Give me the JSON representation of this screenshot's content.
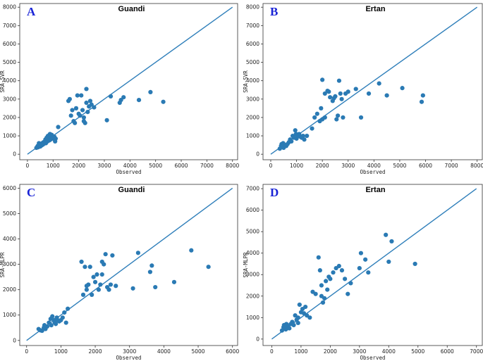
{
  "chart_data": [
    {
      "type": "scatter",
      "panel_label": "A",
      "title": "Guandi",
      "xlabel": "Observed",
      "ylabel": "SRA-SVR",
      "xlim": [
        -300,
        8200
      ],
      "ylim": [
        -300,
        8200
      ],
      "xticks": [
        0,
        1000,
        2000,
        3000,
        4000,
        5000,
        6000,
        7000,
        8000
      ],
      "yticks": [
        0,
        1000,
        2000,
        3000,
        4000,
        5000,
        6000,
        7000,
        8000
      ],
      "reference_line": {
        "from": [
          0,
          0
        ],
        "to": [
          8000,
          8000
        ]
      },
      "points": [
        [
          350,
          350
        ],
        [
          400,
          450
        ],
        [
          420,
          380
        ],
        [
          450,
          600
        ],
        [
          480,
          500
        ],
        [
          500,
          420
        ],
        [
          520,
          550
        ],
        [
          550,
          480
        ],
        [
          580,
          600
        ],
        [
          600,
          520
        ],
        [
          620,
          650
        ],
        [
          650,
          580
        ],
        [
          680,
          700
        ],
        [
          700,
          800
        ],
        [
          720,
          600
        ],
        [
          750,
          900
        ],
        [
          780,
          700
        ],
        [
          800,
          1000
        ],
        [
          820,
          850
        ],
        [
          850,
          750
        ],
        [
          880,
          1100
        ],
        [
          900,
          800
        ],
        [
          920,
          950
        ],
        [
          950,
          1050
        ],
        [
          980,
          900
        ],
        [
          1000,
          850
        ],
        [
          1050,
          950
        ],
        [
          1080,
          700
        ],
        [
          1100,
          850
        ],
        [
          1200,
          1480
        ],
        [
          1600,
          2900
        ],
        [
          1650,
          3000
        ],
        [
          1700,
          2100
        ],
        [
          1750,
          2400
        ],
        [
          1800,
          1800
        ],
        [
          1850,
          1700
        ],
        [
          1900,
          2500
        ],
        [
          1950,
          3200
        ],
        [
          2000,
          2200
        ],
        [
          2050,
          2100
        ],
        [
          2100,
          3200
        ],
        [
          2150,
          2400
        ],
        [
          2200,
          2000
        ],
        [
          2250,
          1700
        ],
        [
          2300,
          3550
        ],
        [
          2350,
          2300
        ],
        [
          2400,
          2600
        ],
        [
          2450,
          2900
        ],
        [
          2500,
          2700
        ],
        [
          2600,
          2550
        ],
        [
          3100,
          1850
        ],
        [
          3250,
          3150
        ],
        [
          3600,
          2800
        ],
        [
          3650,
          2950
        ],
        [
          3750,
          3100
        ],
        [
          4350,
          2950
        ],
        [
          4800,
          3380
        ],
        [
          5300,
          2850
        ],
        [
          2200,
          1800
        ],
        [
          2300,
          2800
        ]
      ]
    },
    {
      "type": "scatter",
      "panel_label": "B",
      "title": "Ertan",
      "xlabel": "Observed",
      "ylabel": "SRA-SVR",
      "xlim": [
        -300,
        8200
      ],
      "ylim": [
        -300,
        8200
      ],
      "xticks": [
        0,
        1000,
        2000,
        3000,
        4000,
        5000,
        6000,
        7000,
        8000
      ],
      "yticks": [
        0,
        1000,
        2000,
        3000,
        4000,
        5000,
        6000,
        7000,
        8000
      ],
      "reference_line": {
        "from": [
          0,
          0
        ],
        "to": [
          8000,
          8000
        ]
      },
      "points": [
        [
          350,
          300
        ],
        [
          400,
          450
        ],
        [
          420,
          550
        ],
        [
          450,
          400
        ],
        [
          480,
          600
        ],
        [
          500,
          350
        ],
        [
          550,
          500
        ],
        [
          600,
          450
        ],
        [
          650,
          550
        ],
        [
          700,
          650
        ],
        [
          750,
          800
        ],
        [
          800,
          700
        ],
        [
          850,
          1000
        ],
        [
          900,
          900
        ],
        [
          950,
          1300
        ],
        [
          980,
          1100
        ],
        [
          1000,
          850
        ],
        [
          1050,
          1000
        ],
        [
          1100,
          1100
        ],
        [
          1150,
          950
        ],
        [
          1200,
          900
        ],
        [
          1250,
          1000
        ],
        [
          1300,
          800
        ],
        [
          1600,
          1400
        ],
        [
          1700,
          2000
        ],
        [
          1800,
          2200
        ],
        [
          1900,
          1800
        ],
        [
          1950,
          2500
        ],
        [
          2000,
          4050
        ],
        [
          2100,
          2000
        ],
        [
          2100,
          3300
        ],
        [
          2200,
          3450
        ],
        [
          2250,
          3400
        ],
        [
          2300,
          3100
        ],
        [
          2400,
          2900
        ],
        [
          2450,
          3050
        ],
        [
          2500,
          3150
        ],
        [
          2550,
          1900
        ],
        [
          2600,
          2100
        ],
        [
          2650,
          4000
        ],
        [
          2700,
          3300
        ],
        [
          2750,
          3000
        ],
        [
          2800,
          2000
        ],
        [
          2900,
          3300
        ],
        [
          3000,
          3400
        ],
        [
          3300,
          3550
        ],
        [
          3500,
          2000
        ],
        [
          3800,
          3300
        ],
        [
          4200,
          3850
        ],
        [
          4500,
          3200
        ],
        [
          5100,
          3600
        ],
        [
          5850,
          2850
        ],
        [
          5900,
          3200
        ],
        [
          2000,
          1900
        ],
        [
          1400,
          1000
        ]
      ]
    },
    {
      "type": "scatter",
      "panel_label": "C",
      "title": "Guandi",
      "xlabel": "Observed",
      "ylabel": "SRA-MLPR",
      "xlim": [
        -200,
        6150
      ],
      "ylim": [
        -200,
        6150
      ],
      "xticks": [
        0,
        1000,
        2000,
        3000,
        4000,
        5000,
        6000
      ],
      "yticks": [
        0,
        1000,
        2000,
        3000,
        4000,
        5000,
        6000
      ],
      "reference_line": {
        "from": [
          0,
          0
        ],
        "to": [
          6000,
          6000
        ]
      },
      "points": [
        [
          350,
          450
        ],
        [
          400,
          400
        ],
        [
          450,
          380
        ],
        [
          500,
          500
        ],
        [
          520,
          600
        ],
        [
          550,
          450
        ],
        [
          600,
          550
        ],
        [
          650,
          700
        ],
        [
          700,
          850
        ],
        [
          720,
          600
        ],
        [
          750,
          950
        ],
        [
          800,
          800
        ],
        [
          820,
          700
        ],
        [
          850,
          650
        ],
        [
          880,
          900
        ],
        [
          900,
          800
        ],
        [
          950,
          750
        ],
        [
          1000,
          800
        ],
        [
          1050,
          900
        ],
        [
          1100,
          1100
        ],
        [
          1150,
          700
        ],
        [
          1200,
          1250
        ],
        [
          1600,
          3100
        ],
        [
          1650,
          1800
        ],
        [
          1700,
          2900
        ],
        [
          1750,
          2000
        ],
        [
          1800,
          2200
        ],
        [
          1850,
          2900
        ],
        [
          1900,
          1800
        ],
        [
          1950,
          2500
        ],
        [
          2000,
          2300
        ],
        [
          2050,
          2600
        ],
        [
          2100,
          2000
        ],
        [
          2150,
          2200
        ],
        [
          2200,
          3100
        ],
        [
          2250,
          3000
        ],
        [
          2300,
          3400
        ],
        [
          2350,
          2100
        ],
        [
          2400,
          2000
        ],
        [
          2450,
          2200
        ],
        [
          2500,
          3350
        ],
        [
          2600,
          2150
        ],
        [
          3100,
          2050
        ],
        [
          3250,
          3450
        ],
        [
          3600,
          2700
        ],
        [
          3650,
          2950
        ],
        [
          3750,
          2100
        ],
        [
          4300,
          2300
        ],
        [
          4800,
          3550
        ],
        [
          5300,
          2900
        ],
        [
          1750,
          2150
        ],
        [
          2200,
          2600
        ]
      ]
    },
    {
      "type": "scatter",
      "panel_label": "D",
      "title": "Ertan",
      "xlabel": "Observed",
      "ylabel": "SRA-MLPR",
      "xlim": [
        -300,
        7200
      ],
      "ylim": [
        -300,
        7200
      ],
      "xticks": [
        0,
        1000,
        2000,
        3000,
        4000,
        5000,
        6000,
        7000
      ],
      "yticks": [
        0,
        1000,
        2000,
        3000,
        4000,
        5000,
        6000,
        7000
      ],
      "reference_line": {
        "from": [
          0,
          0
        ],
        "to": [
          7000,
          7000
        ]
      },
      "points": [
        [
          350,
          400
        ],
        [
          400,
          550
        ],
        [
          420,
          650
        ],
        [
          450,
          500
        ],
        [
          480,
          450
        ],
        [
          500,
          700
        ],
        [
          550,
          600
        ],
        [
          600,
          500
        ],
        [
          650,
          700
        ],
        [
          700,
          800
        ],
        [
          750,
          650
        ],
        [
          800,
          1100
        ],
        [
          850,
          900
        ],
        [
          900,
          1000
        ],
        [
          950,
          1600
        ],
        [
          1000,
          1250
        ],
        [
          1050,
          1400
        ],
        [
          1100,
          1200
        ],
        [
          1150,
          1500
        ],
        [
          1200,
          1100
        ],
        [
          1400,
          2200
        ],
        [
          1500,
          2100
        ],
        [
          1600,
          3800
        ],
        [
          1650,
          3200
        ],
        [
          1700,
          2500
        ],
        [
          1750,
          1700
        ],
        [
          1800,
          1900
        ],
        [
          1850,
          2700
        ],
        [
          1900,
          2300
        ],
        [
          1950,
          2900
        ],
        [
          2000,
          2800
        ],
        [
          2100,
          3100
        ],
        [
          2200,
          3300
        ],
        [
          2300,
          3400
        ],
        [
          2400,
          3200
        ],
        [
          2500,
          2800
        ],
        [
          2600,
          2100
        ],
        [
          2700,
          2600
        ],
        [
          3000,
          3300
        ],
        [
          3050,
          4000
        ],
        [
          3200,
          3700
        ],
        [
          3300,
          3100
        ],
        [
          3900,
          4850
        ],
        [
          4000,
          3600
        ],
        [
          4100,
          4550
        ],
        [
          4900,
          3500
        ],
        [
          900,
          750
        ],
        [
          1300,
          1000
        ],
        [
          1700,
          2000
        ]
      ]
    }
  ]
}
